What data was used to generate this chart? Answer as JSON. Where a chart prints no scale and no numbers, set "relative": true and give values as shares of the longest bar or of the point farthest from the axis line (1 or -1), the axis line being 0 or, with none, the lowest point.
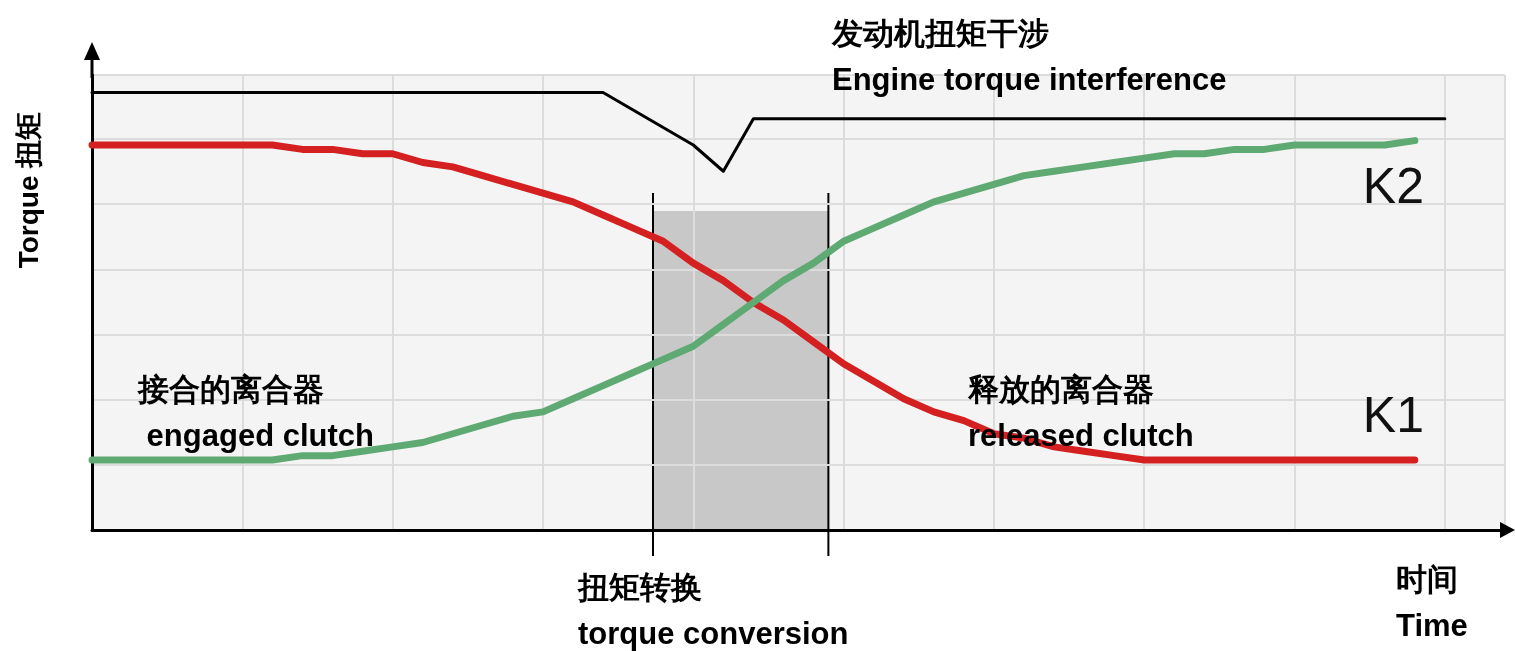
{
  "chart_data": {
    "type": "line",
    "relative": true,
    "grid": true,
    "legend": false,
    "marker": "none",
    "line_style": "solid",
    "xlabel": "时间\nTime",
    "ylabel": "Torque 扭矩",
    "categories": [
      null,
      null,
      null,
      null,
      null,
      null,
      null,
      null,
      null,
      null,
      null,
      null,
      null,
      null,
      null,
      null,
      null,
      null,
      null,
      null,
      null,
      null,
      null,
      null,
      null,
      null,
      null,
      null,
      null,
      null,
      null,
      null,
      null,
      null,
      null,
      null,
      null,
      null,
      null,
      null,
      null,
      null,
      null,
      null,
      null,
      null,
      null,
      null
    ],
    "series": [
      {
        "color": "#000000",
        "values": [
          1.0,
          1.0,
          1.0,
          1.0,
          1.0,
          1.0,
          1.0,
          1.0,
          1.0,
          1.0,
          1.0,
          1.0,
          1.0,
          1.0,
          1.0,
          1.0,
          1.0,
          1.0,
          0.96,
          0.92,
          0.88,
          0.82,
          0.94,
          0.94,
          0.94,
          0.94,
          0.94,
          0.94,
          0.94,
          0.94,
          0.94,
          0.94,
          0.94,
          0.94,
          0.94,
          0.94,
          0.94,
          0.94,
          0.94,
          0.94,
          0.94,
          0.94,
          0.94,
          0.94,
          0.94,
          0.94,
          null,
          null
        ]
      },
      {
        "name": "K1",
        "color": "#d42020",
        "values": [
          0.88,
          0.88,
          0.88,
          0.88,
          0.88,
          0.88,
          0.88,
          0.87,
          0.87,
          0.86,
          0.86,
          0.84,
          0.83,
          0.81,
          0.79,
          0.77,
          0.75,
          0.72,
          0.69,
          0.66,
          0.61,
          0.57,
          0.52,
          0.48,
          0.43,
          0.38,
          0.34,
          0.3,
          0.27,
          0.25,
          0.22,
          0.21,
          0.19,
          0.18,
          0.17,
          0.16,
          0.16,
          0.16,
          0.16,
          0.16,
          0.16,
          0.16,
          0.16,
          0.16,
          0.16,
          null,
          null,
          null
        ]
      },
      {
        "name": "K2",
        "color": "#5faa73",
        "values": [
          0.16,
          0.16,
          0.16,
          0.16,
          0.16,
          0.16,
          0.16,
          0.17,
          0.17,
          0.18,
          0.19,
          0.2,
          0.22,
          0.24,
          0.26,
          0.27,
          0.3,
          0.33,
          0.36,
          0.39,
          0.42,
          0.47,
          0.52,
          0.57,
          0.61,
          0.66,
          0.69,
          0.72,
          0.75,
          0.77,
          0.79,
          0.81,
          0.82,
          0.83,
          0.84,
          0.85,
          0.86,
          0.86,
          0.87,
          0.87,
          0.88,
          0.88,
          0.88,
          0.88,
          0.89,
          null,
          null,
          null
        ]
      }
    ],
    "annotations": [
      "发动机扭矩干涉\nEngine torque interference",
      "接合的离合器\n engaged clutch",
      "释放的离合器\nreleased clutch",
      "扭矩转换\ntorque conversion"
    ]
  }
}
